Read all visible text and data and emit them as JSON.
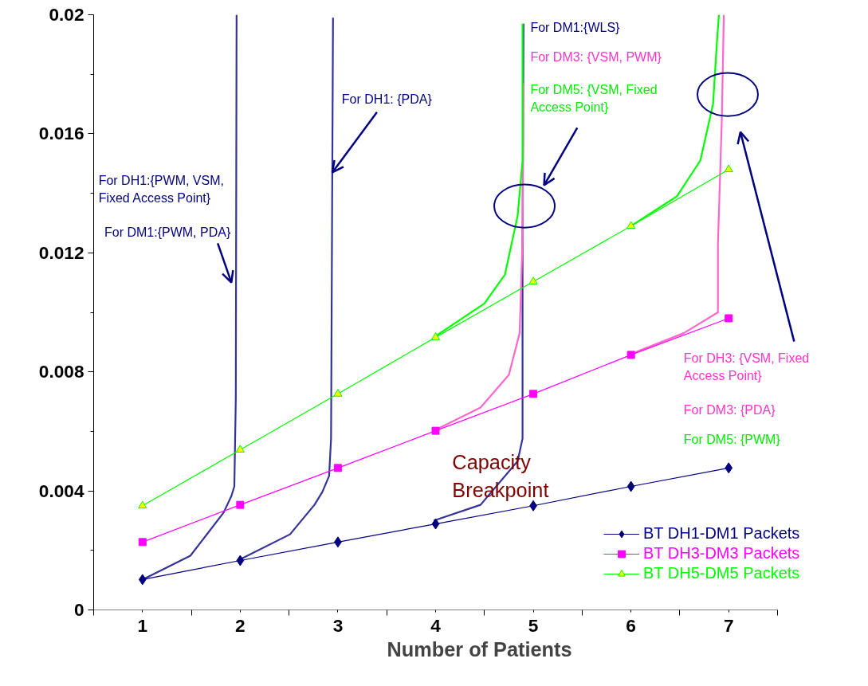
{
  "chart_data": {
    "type": "line",
    "xlabel": "Number of Patients",
    "x": [
      1,
      2,
      3,
      4,
      5,
      6,
      7
    ],
    "xlim": [
      0.5,
      7.5
    ],
    "xticks": [
      1,
      2,
      3,
      4,
      5,
      6,
      7
    ],
    "ylim": [
      0,
      0.02
    ],
    "yticks": [
      0,
      0.004,
      0.008,
      0.012,
      0.016,
      0.02
    ],
    "grid": false,
    "legend": "bottom right",
    "line_style": "solid",
    "series": [
      {
        "name": "BT DH1-DM1 Packets",
        "color": "#000080",
        "marker": "diamond",
        "values": [
          0.00102,
          0.00166,
          0.00228,
          0.00289,
          0.0035,
          0.00415,
          0.00477
        ]
      },
      {
        "name": "BT DH3-DM3 Packets",
        "color": "#ff00ff",
        "marker": "square",
        "values": [
          0.00228,
          0.00353,
          0.00477,
          0.00602,
          0.00726,
          0.00857,
          0.0098
        ]
      },
      {
        "name": "BT DH5-DM5 Packets",
        "color": "#00ff00",
        "marker": "triangle",
        "values": [
          0.0035,
          0.00538,
          0.00726,
          0.00916,
          0.01103,
          0.0129,
          0.0148
        ]
      },
      {
        "color": "#333399",
        "marker": "none",
        "x": [
          1,
          1.49,
          1.83,
          1.91,
          1.94,
          1.955,
          1.963
        ],
        "values": [
          0.00102,
          0.00182,
          0.00327,
          0.00383,
          0.00415,
          0.0071,
          0.02
        ]
      },
      {
        "color": "#333399",
        "marker": "none",
        "x": [
          2,
          2.51,
          2.76,
          2.84,
          2.91,
          2.93,
          2.95
        ],
        "values": [
          0.0017,
          0.00254,
          0.00353,
          0.00396,
          0.0045,
          0.00576,
          0.0199
        ]
      },
      {
        "color": "#333399",
        "marker": "none",
        "x": [
          3.98,
          4.46,
          4.84,
          4.89,
          4.89,
          4.9
        ],
        "values": [
          0.003,
          0.00353,
          0.005,
          0.00576,
          0.01245,
          0.0197
        ]
      },
      {
        "color": "#ff66cc",
        "marker": "none",
        "x": [
          4,
          4.46,
          4.75,
          4.86,
          4.89,
          4.9
        ],
        "values": [
          0.00605,
          0.0068,
          0.0079,
          0.0093,
          0.01245,
          0.0177
        ]
      },
      {
        "color": "#00ff00",
        "marker": "none",
        "x": [
          4,
          4.5,
          4.71,
          4.84,
          4.89,
          4.89
        ],
        "values": [
          0.0092,
          0.0103,
          0.01127,
          0.01325,
          0.0151,
          0.0197
        ]
      },
      {
        "color": "#00ff00",
        "marker": "none",
        "x": [
          6,
          6.47,
          6.71,
          6.84,
          6.88,
          6.9
        ],
        "values": [
          0.0129,
          0.0139,
          0.0151,
          0.017,
          0.0191,
          0.02
        ]
      },
      {
        "color": "#ff66cc",
        "marker": "none",
        "x": [
          6,
          6.54,
          6.89,
          6.89,
          6.93,
          6.95
        ],
        "values": [
          0.0086,
          0.0093,
          0.01,
          0.0123,
          0.0165,
          0.02
        ]
      }
    ],
    "annotations": [
      "For DH1:{PWM, VSM,\nFixed Access Point}",
      "For DM1:{PWM, PDA}",
      {
        "text": "For DH1: {PDA}",
        "x": 2.943,
        "y": 0.0147
      },
      "For DM1:{WLS}",
      "For DM3: {VSM, PWM}",
      "For DM5: {VSM, Fixed\nAccess Point}",
      "For DH3: {VSM, Fixed\nAccess Point}",
      "For DM3: {PDA}",
      "For DM5: {PWM}",
      "Capacity\nBreakpoint"
    ]
  }
}
